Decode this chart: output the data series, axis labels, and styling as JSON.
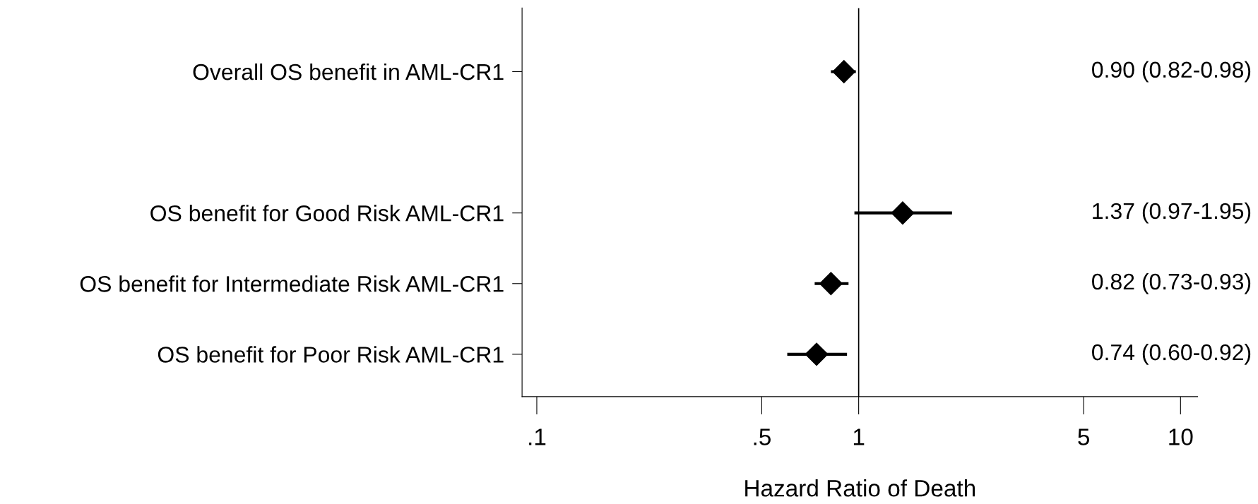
{
  "chart_data": {
    "type": "scatter",
    "xlabel": "Hazard Ratio of Death",
    "categories": [
      "Overall OS benefit in AML-CR1",
      null,
      "OS benefit for Good Risk AML-CR1",
      "OS benefit for Intermediate Risk AML-CR1",
      "OS benefit for Poor Risk AML-CR1"
    ],
    "values": [
      0.9,
      null,
      1.37,
      0.82,
      0.74
    ],
    "errors": [
      [
        0.82,
        0.98
      ],
      null,
      [
        0.97,
        1.95
      ],
      [
        0.73,
        0.93
      ],
      [
        0.6,
        0.92
      ]
    ],
    "annotations": [
      "0.90 (0.82-0.98)",
      "1.37 (0.97-1.95)",
      "0.82 (0.73-0.93)",
      "0.74 (0.60-0.92)"
    ],
    "color": "#000000",
    "marker": "diamond",
    "log": "x",
    "xlim": [
      0.09,
      11.3
    ],
    "xticks": [
      {
        "value": 0.1,
        "label": ".1"
      },
      {
        "value": 0.5,
        "label": ".5"
      },
      {
        "value": 1,
        "label": "1"
      },
      {
        "value": 5,
        "label": "5"
      },
      {
        "value": 10,
        "label": "10"
      }
    ],
    "orientation": "horizontal",
    "ref_lines": [
      {
        "axis": "x",
        "value": 1,
        "color": "#000000"
      }
    ],
    "grid": false,
    "legend": false
  }
}
